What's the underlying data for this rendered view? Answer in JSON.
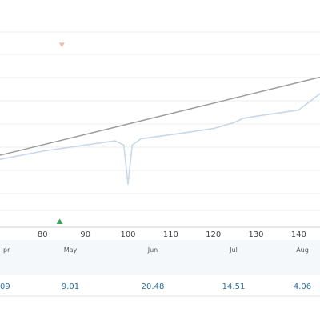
{
  "chart_data": {
    "type": "line",
    "x_ticks": [
      80,
      90,
      100,
      110,
      120,
      130,
      140
    ],
    "months": [
      {
        "label": "pr",
        "value": "09"
      },
      {
        "label": "May",
        "value": "9.01"
      },
      {
        "label": "Jun",
        "value": "20.48"
      },
      {
        "label": "Jul",
        "value": "14.51"
      },
      {
        "label": "Aug",
        "value": "4.06"
      }
    ],
    "series": [
      {
        "color": "#c8d8ea",
        "x": [
          70,
          80,
          90,
          97,
          99,
          100,
          101,
          103,
          110,
          120,
          125,
          127,
          130,
          140,
          145
        ],
        "y": [
          48,
          52,
          55,
          57,
          55,
          36,
          55,
          58,
          60,
          63,
          66,
          68,
          69,
          72,
          80
        ]
      },
      {
        "color": "#9a9a9a",
        "x": [
          70,
          145
        ],
        "y": [
          50,
          88
        ]
      }
    ],
    "xlim": [
      70,
      145
    ],
    "ylim": [
      15,
      110
    ],
    "grid": true,
    "markers": [
      {
        "shape": "triangle-down",
        "x": 84.5,
        "color": "#f0b8a8"
      },
      {
        "shape": "triangle-up",
        "x": 84,
        "color": "#3aa35a"
      }
    ]
  },
  "colors": {
    "grid": "#ececec",
    "axis": "#cfcfcf",
    "band": "#f5f8fb",
    "separator": "#e6e6e6"
  }
}
